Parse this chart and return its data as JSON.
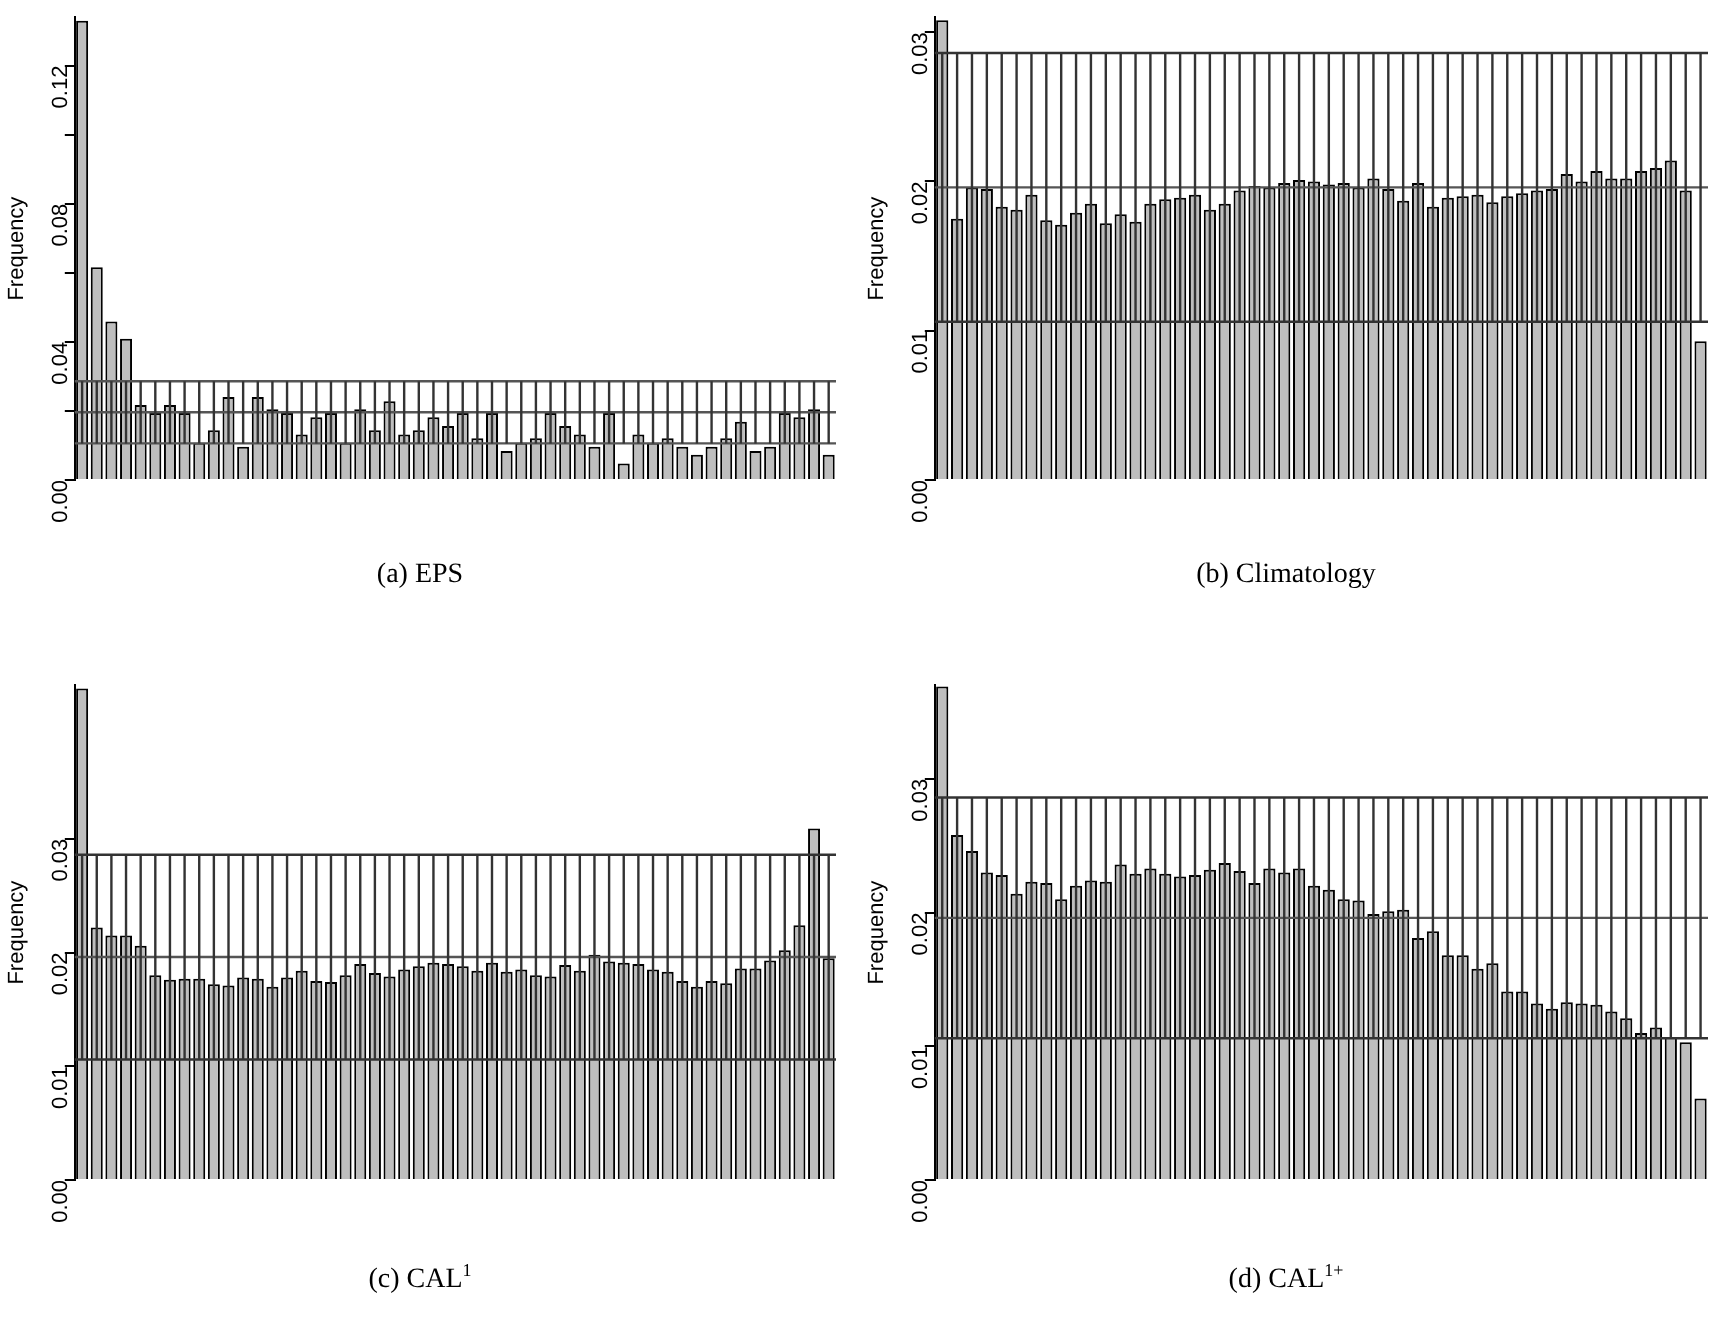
{
  "chart_data": [
    {
      "type": "bar",
      "title": "(a) EPS",
      "ylabel": "Frequency",
      "tick_labels": "y",
      "ylim": [
        0,
        0.134
      ],
      "yticks": [
        {
          "value": 0,
          "label": "0.00"
        },
        {
          "value": 0.02,
          "label": null
        },
        {
          "value": 0.04,
          "label": "0.04"
        },
        {
          "value": 0.06,
          "label": null
        },
        {
          "value": 0.08,
          "label": "0.08"
        },
        {
          "value": 0.1,
          "label": null
        },
        {
          "value": 0.12,
          "label": "0.12"
        }
      ],
      "categories": [
        null,
        null,
        null,
        null,
        null,
        null,
        null,
        null,
        null,
        null,
        null,
        null,
        null,
        null,
        null,
        null,
        null,
        null,
        null,
        null,
        null,
        null,
        null,
        null,
        null,
        null,
        null,
        null,
        null,
        null,
        null,
        null,
        null,
        null,
        null,
        null,
        null,
        null,
        null,
        null,
        null,
        null,
        null,
        null,
        null,
        null,
        null,
        null,
        null,
        null,
        null,
        null
      ],
      "series": [
        {
          "color": "#bebebe",
          "values": [
            0.133,
            0.0616,
            0.0459,
            0.0409,
            0.0217,
            0.0194,
            0.0217,
            0.0194,
            0.0108,
            0.0144,
            0.024,
            0.0096,
            0.024,
            0.0205,
            0.0194,
            0.0132,
            0.0182,
            0.0194,
            0.0108,
            0.0205,
            0.0144,
            0.0228,
            0.0132,
            0.0144,
            0.0182,
            0.0156,
            0.0194,
            0.0121,
            0.0194,
            0.0084,
            0.0108,
            0.0121,
            0.0194,
            0.0156,
            0.0132,
            0.0096,
            0.0194,
            0.0048,
            0.0132,
            0.0108,
            0.0121,
            0.0096,
            0.0073,
            0.0096,
            0.0121,
            0.0169,
            0.0084,
            0.0096,
            0.0194,
            0.0182,
            0.0205,
            0.0073
          ]
        }
      ],
      "ref_lines": [
        {
          "axis": "y",
          "value": 0.0106,
          "color": "#555555"
        },
        {
          "axis": "y",
          "value": 0.0196,
          "color": "#555555"
        },
        {
          "axis": "y",
          "value": 0.0286,
          "color": "#555555"
        }
      ]
    },
    {
      "type": "bar",
      "title": "(b) Climatology",
      "ylabel": "Frequency",
      "tick_labels": "y",
      "ylim": [
        0,
        0.031
      ],
      "yticks": [
        {
          "value": 0,
          "label": "0.00"
        },
        {
          "value": 0.01,
          "label": "0.01"
        },
        {
          "value": 0.02,
          "label": "0.02"
        },
        {
          "value": 0.03,
          "label": "0.03"
        }
      ],
      "categories": [
        null,
        null,
        null,
        null,
        null,
        null,
        null,
        null,
        null,
        null,
        null,
        null,
        null,
        null,
        null,
        null,
        null,
        null,
        null,
        null,
        null,
        null,
        null,
        null,
        null,
        null,
        null,
        null,
        null,
        null,
        null,
        null,
        null,
        null,
        null,
        null,
        null,
        null,
        null,
        null,
        null,
        null,
        null,
        null,
        null,
        null,
        null,
        null,
        null,
        null,
        null,
        null
      ],
      "series": [
        {
          "color": "#bebebe",
          "values": [
            0.0308,
            0.0175,
            0.0196,
            0.0195,
            0.0183,
            0.0181,
            0.0191,
            0.0174,
            0.0171,
            0.0179,
            0.0185,
            0.0172,
            0.0178,
            0.0173,
            0.0185,
            0.0188,
            0.0189,
            0.0191,
            0.0181,
            0.0185,
            0.0194,
            0.0197,
            0.0196,
            0.0199,
            0.0201,
            0.02,
            0.0198,
            0.0199,
            0.0196,
            0.0202,
            0.0195,
            0.0187,
            0.0199,
            0.0183,
            0.0189,
            0.019,
            0.0191,
            0.0186,
            0.019,
            0.0192,
            0.0194,
            0.0195,
            0.0205,
            0.02,
            0.0207,
            0.0202,
            0.0202,
            0.0207,
            0.0209,
            0.0214,
            0.0194,
            0.0093
          ]
        }
      ],
      "ref_lines": [
        {
          "axis": "y",
          "value": 0.0106,
          "color": "#333333"
        },
        {
          "axis": "y",
          "value": 0.0196,
          "color": "#555555"
        },
        {
          "axis": "y",
          "value": 0.0286,
          "color": "#333333"
        }
      ]
    },
    {
      "type": "bar",
      "title": "(c) CAL$^{1}$",
      "ylabel": "Frequency",
      "tick_labels": "y",
      "ylim": [
        0,
        0.0435
      ],
      "yticks": [
        {
          "value": 0,
          "label": "0.00"
        },
        {
          "value": 0.01,
          "label": "0.01"
        },
        {
          "value": 0.02,
          "label": "0.02"
        },
        {
          "value": 0.03,
          "label": "0.03"
        }
      ],
      "categories": [
        null,
        null,
        null,
        null,
        null,
        null,
        null,
        null,
        null,
        null,
        null,
        null,
        null,
        null,
        null,
        null,
        null,
        null,
        null,
        null,
        null,
        null,
        null,
        null,
        null,
        null,
        null,
        null,
        null,
        null,
        null,
        null,
        null,
        null,
        null,
        null,
        null,
        null,
        null,
        null,
        null,
        null,
        null,
        null,
        null,
        null,
        null,
        null,
        null,
        null,
        null,
        null
      ],
      "series": [
        {
          "color": "#bebebe",
          "values": [
            0.0432,
            0.0222,
            0.0215,
            0.0215,
            0.0206,
            0.018,
            0.0176,
            0.0177,
            0.0177,
            0.0172,
            0.0171,
            0.0178,
            0.0177,
            0.017,
            0.0178,
            0.0184,
            0.0175,
            0.0174,
            0.018,
            0.019,
            0.0182,
            0.0179,
            0.0185,
            0.0188,
            0.0191,
            0.019,
            0.0188,
            0.0184,
            0.0191,
            0.0183,
            0.0185,
            0.018,
            0.0179,
            0.0189,
            0.0184,
            0.0198,
            0.0192,
            0.0191,
            0.019,
            0.0185,
            0.0183,
            0.0175,
            0.017,
            0.0175,
            0.0173,
            0.0186,
            0.0186,
            0.0193,
            0.0202,
            0.0224,
            0.0309,
            0.0195
          ]
        }
      ],
      "ref_lines": [
        {
          "axis": "y",
          "value": 0.0106,
          "color": "#333333"
        },
        {
          "axis": "y",
          "value": 0.0196,
          "color": "#555555"
        },
        {
          "axis": "y",
          "value": 0.0286,
          "color": "#333333"
        }
      ]
    },
    {
      "type": "bar",
      "title": "(d) CAL$^{1+}$",
      "ylabel": "Frequency",
      "tick_labels": "y",
      "ylim": [
        0,
        0.037
      ],
      "yticks": [
        {
          "value": 0,
          "label": "0.00"
        },
        {
          "value": 0.01,
          "label": "0.01"
        },
        {
          "value": 0.02,
          "label": "0.02"
        },
        {
          "value": 0.03,
          "label": "0.03"
        }
      ],
      "categories": [
        null,
        null,
        null,
        null,
        null,
        null,
        null,
        null,
        null,
        null,
        null,
        null,
        null,
        null,
        null,
        null,
        null,
        null,
        null,
        null,
        null,
        null,
        null,
        null,
        null,
        null,
        null,
        null,
        null,
        null,
        null,
        null,
        null,
        null,
        null,
        null,
        null,
        null,
        null,
        null,
        null,
        null,
        null,
        null,
        null,
        null,
        null,
        null,
        null,
        null,
        null,
        null
      ],
      "series": [
        {
          "color": "#bebebe",
          "values": [
            0.0369,
            0.0258,
            0.0246,
            0.023,
            0.0228,
            0.0214,
            0.0223,
            0.0222,
            0.021,
            0.022,
            0.0224,
            0.0223,
            0.0236,
            0.0229,
            0.0233,
            0.0229,
            0.0227,
            0.0228,
            0.0232,
            0.0237,
            0.0231,
            0.0222,
            0.0233,
            0.023,
            0.0233,
            0.022,
            0.0217,
            0.021,
            0.0209,
            0.0199,
            0.0201,
            0.0202,
            0.0181,
            0.0186,
            0.0168,
            0.0168,
            0.0158,
            0.0162,
            0.0141,
            0.0141,
            0.0132,
            0.0128,
            0.0133,
            0.0132,
            0.0131,
            0.0126,
            0.0121,
            0.011,
            0.0114,
            0.0107,
            0.0103,
            0.0061
          ]
        }
      ],
      "ref_lines": [
        {
          "axis": "y",
          "value": 0.0106,
          "color": "#333333"
        },
        {
          "axis": "y",
          "value": 0.0196,
          "color": "#555555"
        },
        {
          "axis": "y",
          "value": 0.0286,
          "color": "#333333"
        }
      ]
    }
  ]
}
